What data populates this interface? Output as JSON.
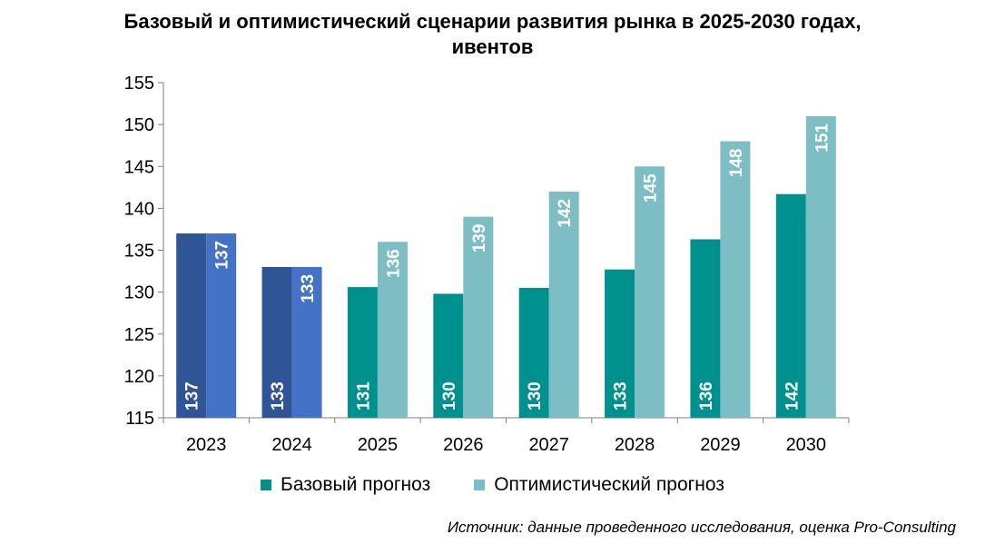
{
  "title_line1": "Базовый и оптимистический сценарии развития рынка в 2025-2030 годах,",
  "title_line2": "ивентов",
  "chart_data": {
    "type": "bar",
    "categories": [
      "2023",
      "2024",
      "2025",
      "2026",
      "2027",
      "2028",
      "2029",
      "2030"
    ],
    "series": [
      {
        "name": "Базовый прогноз",
        "values": [
          137,
          133,
          130.6,
          129.8,
          130.5,
          132.7,
          136.3,
          141.7
        ],
        "labels": [
          "137",
          "133",
          "131",
          "130",
          "130",
          "133",
          "136",
          "142"
        ]
      },
      {
        "name": "Оптимистический прогноз",
        "values": [
          137,
          133,
          136,
          139,
          142,
          145,
          148,
          151
        ],
        "labels": [
          "137",
          "133",
          "136",
          "139",
          "142",
          "145",
          "148",
          "151"
        ]
      }
    ],
    "ylim": [
      115,
      155
    ],
    "yticks": [
      115,
      120,
      125,
      130,
      135,
      140,
      145,
      150,
      155
    ],
    "grid": false,
    "legend_position": "bottom",
    "actual_categories": [
      "2023",
      "2024"
    ],
    "colors": {
      "base_actual": "#2F5597",
      "optimistic_actual": "#4472C4",
      "base_forecast": "#00918F",
      "optimistic_forecast": "#7DBEC4",
      "axis": "#7F7F7F",
      "bar_label": "#FFFFFF"
    }
  },
  "legend": {
    "base_label": "Базовый прогноз",
    "optimistic_label": "Оптимистический прогноз"
  },
  "source": "Источник: данные проведенного исследования, оценка Pro-Consulting"
}
